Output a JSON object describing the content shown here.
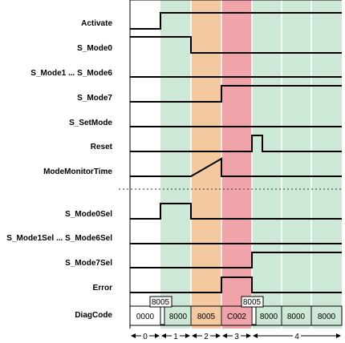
{
  "colors": {
    "green": "#cde8d6",
    "orange": "#f5c9a0",
    "red": "#f0a3a8",
    "line": "#000000",
    "gridline": "#ffffff"
  },
  "signals": [
    {
      "name": "Activate"
    },
    {
      "name": "S_Mode0"
    },
    {
      "name": "S_Mode1 ... S_Mode6"
    },
    {
      "name": "S_Mode7"
    },
    {
      "name": "S_SetMode"
    },
    {
      "name": "Reset"
    },
    {
      "name": "ModeMonitorTime"
    },
    {
      "name": "S_Mode0Sel"
    },
    {
      "name": "S_Mode1Sel ... S_Mode6Sel"
    },
    {
      "name": "S_Mode7Sel"
    },
    {
      "name": "Error"
    },
    {
      "name": "DiagCode"
    }
  ],
  "diag_codes": [
    "0000",
    "8000",
    "8005",
    "C002",
    "8000",
    "8000",
    "8000"
  ],
  "diag_code_transitions": [
    "8005",
    "8005"
  ],
  "phases": [
    "0",
    "1",
    "2",
    "3",
    "4"
  ]
}
